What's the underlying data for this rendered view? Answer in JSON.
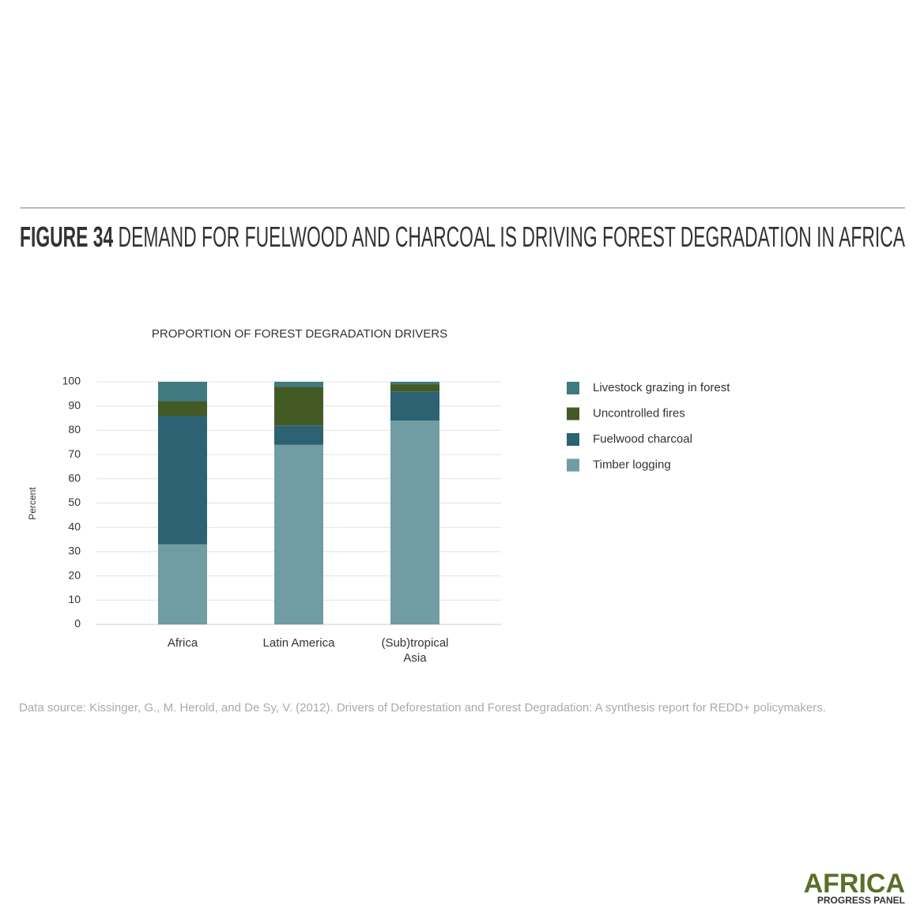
{
  "header": {
    "figure": "FIGURE 34",
    "title": "DEMAND FOR FUELWOOD AND CHARCOAL IS DRIVING FOREST DEGRADATION IN AFRICA"
  },
  "chart_data": {
    "type": "stacked_bar",
    "title": "PROPORTION OF FOREST DEGRADATION DRIVERS",
    "ylabel": "Percent",
    "categories": [
      "Africa",
      "Latin America",
      "(Sub)tropical Asia"
    ],
    "series": [
      {
        "name": "Timber logging",
        "color": "#729ca3",
        "values": [
          33,
          74,
          84
        ]
      },
      {
        "name": "Fuelwood charcoal",
        "color": "#2c6272",
        "values": [
          53,
          8,
          12
        ]
      },
      {
        "name": "Uncontrolled fires",
        "color": "#435a25",
        "values": [
          6,
          16,
          3
        ]
      },
      {
        "name": "Livestock grazing in forest",
        "color": "#3f7a80",
        "values": [
          8,
          2,
          1
        ]
      }
    ],
    "ylim": [
      0,
      100
    ],
    "yticks": [
      0,
      10,
      20,
      30,
      40,
      50,
      60,
      70,
      80,
      90,
      100
    ],
    "grid": true,
    "legend": "right"
  },
  "footer": {
    "source": "Data source: Kissinger, G., M. Herold, and De Sy, V. (2012). Drivers of Deforestation and Forest Degradation: A synthesis report for REDD+ policymakers.",
    "logo": "AFRICA",
    "logo_sub": "PROGRESS PANEL"
  }
}
